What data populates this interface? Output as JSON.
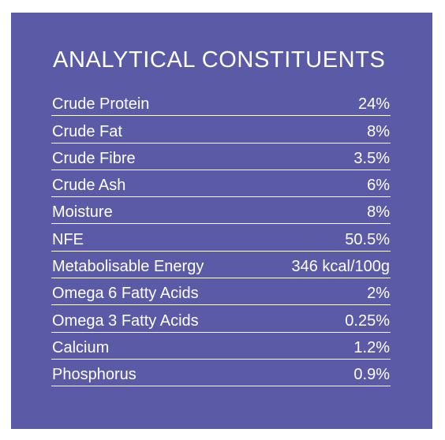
{
  "heading": "ANALYTICAL CONSTITUENTS",
  "colors": {
    "panel_background": "#5a5aa6",
    "text": "#ffffff"
  },
  "rows": [
    {
      "label": "Crude Protein",
      "value": "24%"
    },
    {
      "label": "Crude Fat",
      "value": "8%"
    },
    {
      "label": "Crude Fibre",
      "value": "3.5%"
    },
    {
      "label": "Crude Ash",
      "value": "6%"
    },
    {
      "label": "Moisture",
      "value": "8%"
    },
    {
      "label": "NFE",
      "value": "50.5%"
    },
    {
      "label": "Metabolisable Energy",
      "value": "346 kcal/100g"
    },
    {
      "label": "Omega 6 Fatty Acids",
      "value": "2%"
    },
    {
      "label": "Omega 3 Fatty Acids",
      "value": "0.25%"
    },
    {
      "label": "Calcium",
      "value": "1.2%"
    },
    {
      "label": "Phosphorus",
      "value": "0.9%"
    }
  ]
}
